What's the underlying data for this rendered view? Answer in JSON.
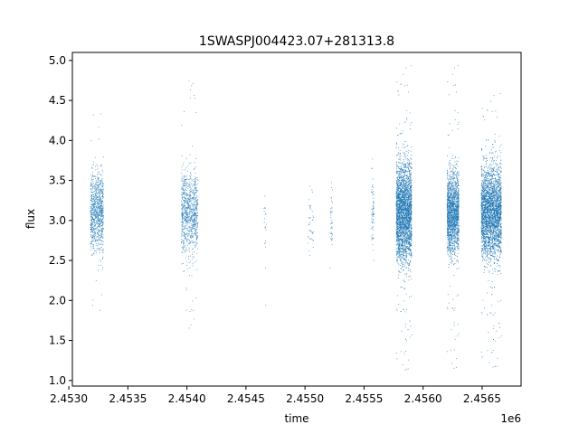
{
  "chart_data": {
    "type": "scatter",
    "title": "1SWASPJ004423.07+281313.8",
    "xlabel": "time",
    "ylabel": "flux",
    "x_offset_label": "1e6",
    "xlim": [
      2.45303,
      2.45683
    ],
    "ylim": [
      0.93,
      5.1
    ],
    "x_ticks": [
      2.453,
      2.4535,
      2.454,
      2.4545,
      2.455,
      2.4555,
      2.456,
      2.4565
    ],
    "x_tick_labels": [
      "2.4530",
      "2.4535",
      "2.4540",
      "2.4545",
      "2.4550",
      "2.4555",
      "2.4560",
      "2.4565"
    ],
    "y_ticks": [
      1.0,
      1.5,
      2.0,
      2.5,
      3.0,
      3.5,
      4.0,
      4.5,
      5.0
    ],
    "y_tick_labels": [
      "1.0",
      "1.5",
      "2.0",
      "2.5",
      "3.0",
      "3.5",
      "4.0",
      "4.5",
      "5.0"
    ],
    "grid": false,
    "point_color": "#1f77b4",
    "clusters": [
      {
        "x_range": [
          2.45318,
          2.45329
        ],
        "y_center": 3.1,
        "y_spread": 0.5,
        "y_min": 1.85,
        "y_max": 4.4,
        "density": 900
      },
      {
        "x_range": [
          2.45395,
          2.45409
        ],
        "y_center": 3.1,
        "y_spread": 0.5,
        "y_min": 1.65,
        "y_max": 4.85,
        "density": 900
      },
      {
        "x_range": [
          2.45465,
          2.45467
        ],
        "y_center": 3.0,
        "y_spread": 0.35,
        "y_min": 1.92,
        "y_max": 3.55,
        "density": 20
      },
      {
        "x_range": [
          2.45502,
          2.45507
        ],
        "y_center": 3.0,
        "y_spread": 0.5,
        "y_min": 2.45,
        "y_max": 4.95,
        "density": 40
      },
      {
        "x_range": [
          2.45521,
          2.45523
        ],
        "y_center": 3.0,
        "y_spread": 0.35,
        "y_min": 2.35,
        "y_max": 3.6,
        "density": 40
      },
      {
        "x_range": [
          2.45556,
          2.45558
        ],
        "y_center": 3.1,
        "y_spread": 0.45,
        "y_min": 1.4,
        "y_max": 4.6,
        "density": 70
      },
      {
        "x_range": [
          2.45577,
          2.4559
        ],
        "y_center": 3.1,
        "y_spread": 0.6,
        "y_min": 1.08,
        "y_max": 4.95,
        "density": 3200
      },
      {
        "x_range": [
          2.4562,
          2.4563
        ],
        "y_center": 3.1,
        "y_spread": 0.5,
        "y_min": 1.1,
        "y_max": 4.95,
        "density": 1800
      },
      {
        "x_range": [
          2.45649,
          2.45666
        ],
        "y_center": 3.1,
        "y_spread": 0.55,
        "y_min": 1.12,
        "y_max": 4.6,
        "density": 3400
      }
    ]
  }
}
